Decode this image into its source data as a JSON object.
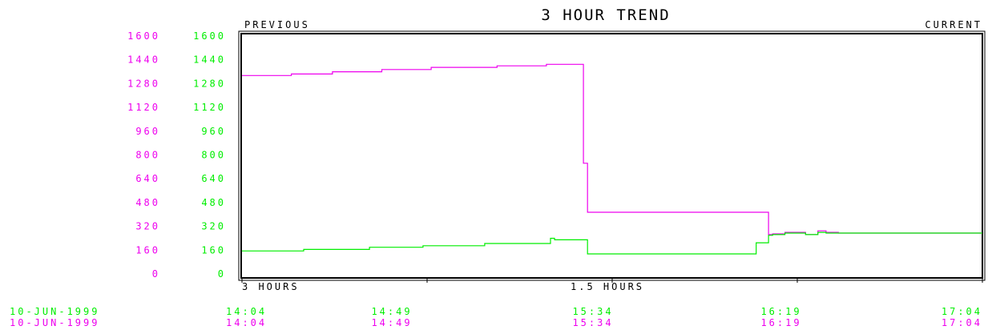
{
  "chart_data": {
    "type": "line",
    "title": "3 HOUR TREND",
    "header_left": "PREVIOUS",
    "header_right": "CURRENT",
    "ylim": [
      0,
      1600
    ],
    "yticks_left": [
      "1600",
      "1440",
      "1280",
      "1120",
      "960",
      "800",
      "640",
      "480",
      "320",
      "160",
      "0"
    ],
    "yticks_right": [
      "1600",
      "1440",
      "1280",
      "1120",
      "960",
      "800",
      "640",
      "480",
      "320",
      "160",
      "0"
    ],
    "xlim": [
      0,
      180
    ],
    "axis_labels": [
      {
        "text": "3 HOURS",
        "at": 0
      },
      {
        "text": "1.5 HOURS",
        "at": 90
      }
    ],
    "x_ticks": [
      0,
      45,
      90,
      135,
      180
    ],
    "time_rows": [
      {
        "date": "10-JUN-1999",
        "times": [
          "14:04",
          "14:49",
          "15:34",
          "16:19",
          "17:04"
        ],
        "color": "#00ee00"
      },
      {
        "date": "10-JUN-1999",
        "times": [
          "14:04",
          "14:49",
          "15:34",
          "16:19",
          "17:04"
        ],
        "color": "#ee00ee"
      }
    ],
    "series": [
      {
        "color": "#ee00ee",
        "x": [
          0,
          12,
          12,
          22,
          22,
          34,
          34,
          46,
          46,
          62,
          62,
          74,
          74,
          83,
          83,
          84,
          84,
          128,
          128,
          129,
          129,
          132,
          132,
          137,
          137,
          140,
          140,
          142,
          142,
          145,
          145,
          180
        ],
        "y": [
          1340,
          1340,
          1350,
          1350,
          1365,
          1365,
          1380,
          1380,
          1395,
          1395,
          1405,
          1405,
          1415,
          1415,
          750,
          750,
          420,
          420,
          270,
          270,
          275,
          275,
          285,
          285,
          270,
          270,
          295,
          295,
          285,
          285,
          280,
          280
        ]
      },
      {
        "color": "#00ee00",
        "x": [
          0,
          15,
          15,
          31,
          31,
          44,
          44,
          59,
          59,
          75,
          75,
          76,
          76,
          84,
          84,
          125,
          125,
          128,
          128,
          129,
          129,
          132,
          132,
          137,
          137,
          140,
          140,
          142,
          142,
          145,
          145,
          180
        ],
        "y": [
          160,
          160,
          170,
          170,
          185,
          185,
          195,
          195,
          210,
          210,
          245,
          245,
          235,
          235,
          140,
          140,
          215,
          215,
          265,
          265,
          270,
          270,
          280,
          280,
          270,
          270,
          285,
          285,
          280,
          280,
          280,
          280
        ]
      }
    ]
  }
}
